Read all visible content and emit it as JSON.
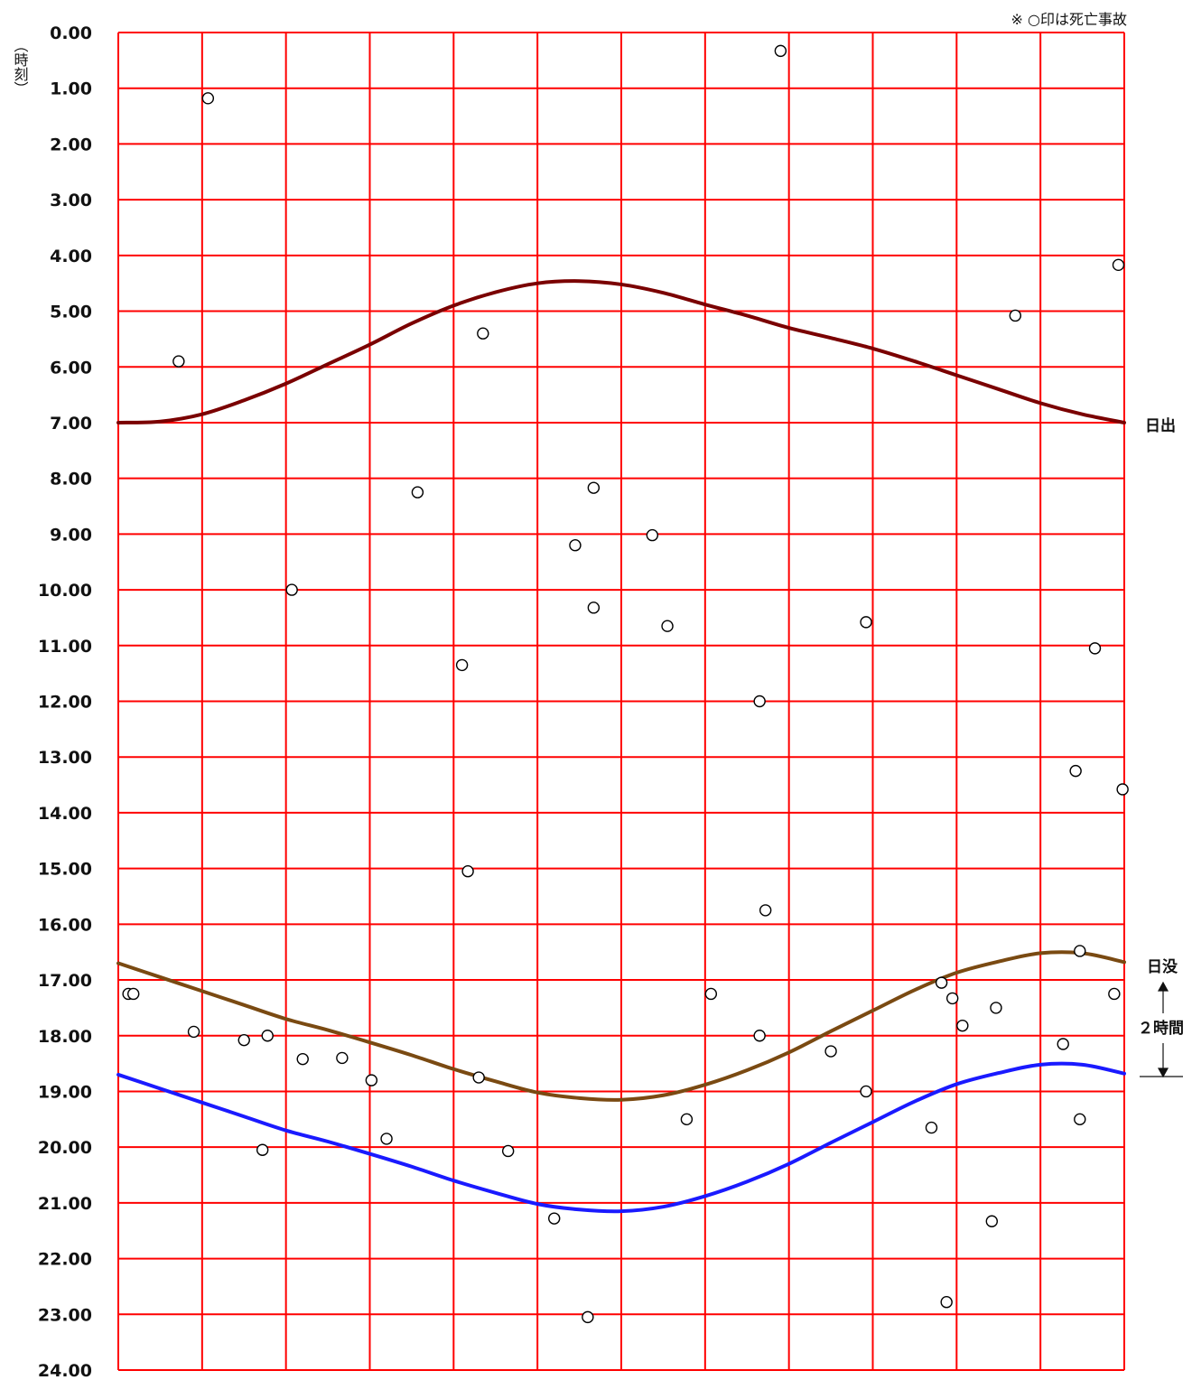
{
  "chart_data": {
    "type": "scatter",
    "note": "※ ○印は死亡事故",
    "ylabel": "（時刻）",
    "y_range": [
      0,
      24
    ],
    "y_ticks": [
      "0.00",
      "1.00",
      "2.00",
      "3.00",
      "4.00",
      "5.00",
      "6.00",
      "7.00",
      "8.00",
      "9.00",
      "10.00",
      "11.00",
      "12.00",
      "13.00",
      "14.00",
      "15.00",
      "16.00",
      "17.00",
      "18.00",
      "19.00",
      "20.00",
      "21.00",
      "22.00",
      "23.00",
      "24.00"
    ],
    "x_range": [
      0,
      12
    ],
    "grid": true,
    "colors": {
      "grid": "#ff0000",
      "sunrise": "#7a0000",
      "sunset": "#7a4a12",
      "sunset_plus_2h": "#1a1aff",
      "points": "#000000"
    },
    "labels": {
      "sunrise": "日出",
      "sunset": "日没",
      "interval": "２時間"
    },
    "series": [
      {
        "name": "日出",
        "kind": "line",
        "x": [
          0,
          0.5,
          1,
          1.5,
          2,
          2.5,
          3,
          3.5,
          4,
          4.5,
          5,
          5.5,
          6,
          6.5,
          7,
          7.5,
          8,
          8.5,
          9,
          9.5,
          10,
          10.5,
          11,
          11.5,
          12
        ],
        "y": [
          7.0,
          6.98,
          6.85,
          6.6,
          6.3,
          5.95,
          5.6,
          5.22,
          4.9,
          4.66,
          4.5,
          4.46,
          4.52,
          4.67,
          4.88,
          5.08,
          5.3,
          5.48,
          5.67,
          5.9,
          6.15,
          6.4,
          6.65,
          6.85,
          7.0
        ]
      },
      {
        "name": "日没",
        "kind": "line",
        "x": [
          0,
          0.5,
          1,
          1.5,
          2,
          2.5,
          3,
          3.5,
          4,
          4.5,
          5,
          5.5,
          6,
          6.5,
          7,
          7.5,
          8,
          8.5,
          9,
          9.5,
          10,
          10.5,
          11,
          11.5,
          12
        ],
        "y": [
          16.7,
          16.95,
          17.2,
          17.45,
          17.7,
          17.9,
          18.12,
          18.35,
          18.6,
          18.82,
          19.02,
          19.12,
          19.15,
          19.07,
          18.88,
          18.62,
          18.3,
          17.92,
          17.55,
          17.18,
          16.87,
          16.67,
          16.52,
          16.52,
          16.68
        ]
      },
      {
        "name": "日没＋２時間",
        "kind": "line",
        "x": [
          0,
          0.5,
          1,
          1.5,
          2,
          2.5,
          3,
          3.5,
          4,
          4.5,
          5,
          5.5,
          6,
          6.5,
          7,
          7.5,
          8,
          8.5,
          9,
          9.5,
          10,
          10.5,
          11,
          11.5,
          12
        ],
        "y": [
          18.7,
          18.95,
          19.2,
          19.45,
          19.7,
          19.9,
          20.12,
          20.35,
          20.6,
          20.82,
          21.02,
          21.12,
          21.15,
          21.07,
          20.88,
          20.62,
          20.3,
          19.92,
          19.55,
          19.18,
          18.87,
          18.67,
          18.52,
          18.52,
          18.68
        ]
      },
      {
        "name": "死亡事故",
        "kind": "scatter",
        "points": [
          [
            0.12,
            17.25
          ],
          [
            0.18,
            17.25
          ],
          [
            0.72,
            5.9
          ],
          [
            0.9,
            17.93
          ],
          [
            1.07,
            1.18
          ],
          [
            1.5,
            18.08
          ],
          [
            1.72,
            20.05
          ],
          [
            1.78,
            18.0
          ],
          [
            2.07,
            10.0
          ],
          [
            2.2,
            18.42
          ],
          [
            2.67,
            18.4
          ],
          [
            3.02,
            18.8
          ],
          [
            3.2,
            19.85
          ],
          [
            3.57,
            8.25
          ],
          [
            4.1,
            11.35
          ],
          [
            4.17,
            15.05
          ],
          [
            4.3,
            18.75
          ],
          [
            4.35,
            5.4
          ],
          [
            4.65,
            20.07
          ],
          [
            5.2,
            21.28
          ],
          [
            5.45,
            9.2
          ],
          [
            5.6,
            23.05
          ],
          [
            5.67,
            8.17
          ],
          [
            5.67,
            10.32
          ],
          [
            6.37,
            9.02
          ],
          [
            6.55,
            10.65
          ],
          [
            6.78,
            19.5
          ],
          [
            7.07,
            17.25
          ],
          [
            7.65,
            12.0
          ],
          [
            7.65,
            18.0
          ],
          [
            7.72,
            15.75
          ],
          [
            7.9,
            0.33
          ],
          [
            8.5,
            18.28
          ],
          [
            8.92,
            10.58
          ],
          [
            8.92,
            19.0
          ],
          [
            9.7,
            19.65
          ],
          [
            9.82,
            17.05
          ],
          [
            9.88,
            22.78
          ],
          [
            9.95,
            17.33
          ],
          [
            10.07,
            17.82
          ],
          [
            10.42,
            21.33
          ],
          [
            10.47,
            17.5
          ],
          [
            10.7,
            5.08
          ],
          [
            11.27,
            18.15
          ],
          [
            11.42,
            13.25
          ],
          [
            11.47,
            16.48
          ],
          [
            11.47,
            19.5
          ],
          [
            11.65,
            11.05
          ],
          [
            11.88,
            17.25
          ],
          [
            11.93,
            4.17
          ],
          [
            11.98,
            13.58
          ]
        ]
      }
    ]
  }
}
